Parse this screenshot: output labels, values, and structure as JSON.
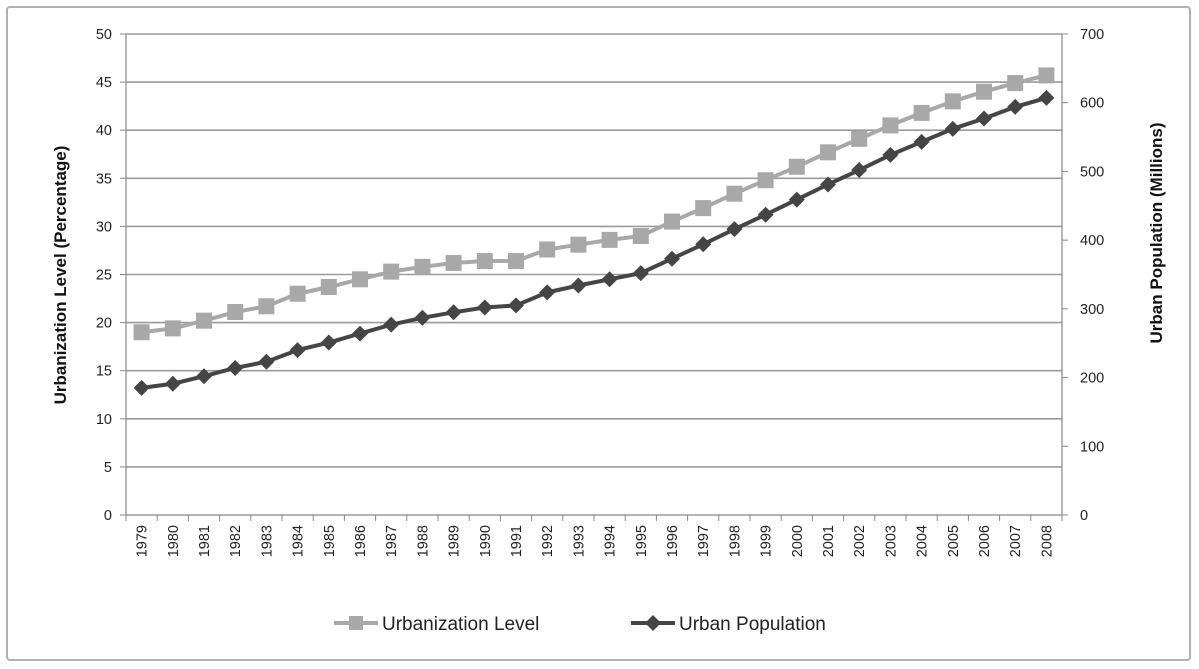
{
  "chart_data": {
    "type": "line",
    "x": [
      "1979",
      "1980",
      "1981",
      "1982",
      "1983",
      "1984",
      "1985",
      "1986",
      "1987",
      "1988",
      "1989",
      "1990",
      "1991",
      "1992",
      "1993",
      "1994",
      "1995",
      "1996",
      "1997",
      "1998",
      "1999",
      "2000",
      "2001",
      "2002",
      "2003",
      "2004",
      "2005",
      "2006",
      "2007",
      "2008"
    ],
    "series": [
      {
        "name": "Urbanization Level",
        "axis": "left",
        "color": "#a8a8a8",
        "marker": "square",
        "values": [
          19.0,
          19.4,
          20.2,
          21.1,
          21.7,
          23.0,
          23.7,
          24.5,
          25.3,
          25.8,
          26.2,
          26.4,
          26.4,
          27.6,
          28.1,
          28.6,
          29.0,
          30.5,
          31.9,
          33.4,
          34.8,
          36.2,
          37.7,
          39.1,
          40.5,
          41.8,
          43.0,
          44.0,
          44.9,
          45.7
        ]
      },
      {
        "name": "Urban Population",
        "axis": "right",
        "color": "#454545",
        "marker": "diamond",
        "values": [
          185,
          191,
          202,
          214,
          223,
          240,
          251,
          264,
          277,
          287,
          295,
          302,
          305,
          324,
          334,
          343,
          352,
          373,
          394,
          416,
          437,
          459,
          481,
          502,
          524,
          543,
          562,
          577,
          594,
          607
        ]
      }
    ],
    "ylabel": "Urbanization Level (Percentage)",
    "ylabel_right": "Urban Population (Millions)",
    "ylim": [
      0,
      50
    ],
    "yticks": [
      "0",
      "5",
      "10",
      "15",
      "20",
      "25",
      "30",
      "35",
      "40",
      "45",
      "50"
    ],
    "ylim_right": [
      0,
      700
    ],
    "yticks_right": [
      "0",
      "100",
      "200",
      "300",
      "400",
      "500",
      "600",
      "700"
    ],
    "grid": true,
    "legend_position": "bottom"
  }
}
